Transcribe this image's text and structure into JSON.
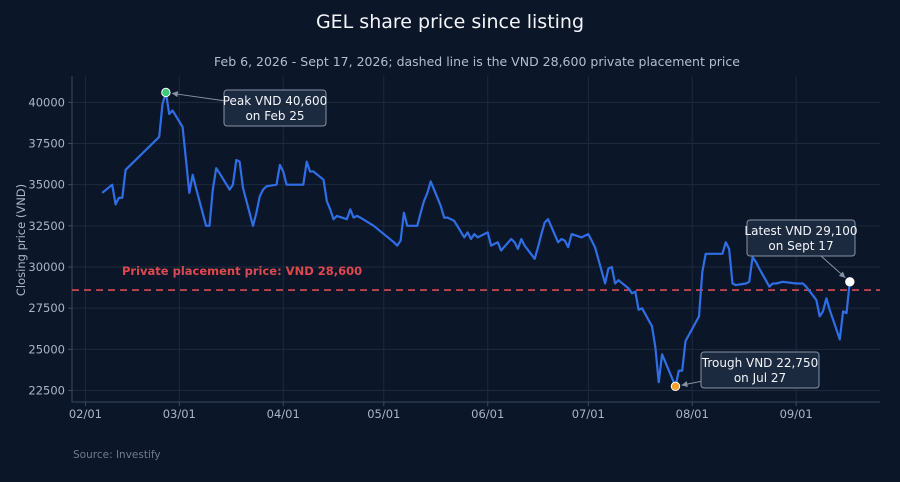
{
  "chart_data": {
    "type": "line",
    "title": "GEL share price since listing",
    "subtitle": "Feb 6, 2026 - Sept 17, 2026; dashed line is the VND 28,600 private placement price",
    "ylabel": "Closing price (VND)",
    "xlabel": "",
    "source": "Source: Investify",
    "x_ticks": [
      {
        "date": "2026-02-01",
        "label": "02/01"
      },
      {
        "date": "2026-03-01",
        "label": "03/01"
      },
      {
        "date": "2026-04-01",
        "label": "04/01"
      },
      {
        "date": "2026-05-01",
        "label": "05/01"
      },
      {
        "date": "2026-06-01",
        "label": "06/01"
      },
      {
        "date": "2026-07-01",
        "label": "07/01"
      },
      {
        "date": "2026-08-01",
        "label": "08/01"
      },
      {
        "date": "2026-09-01",
        "label": "09/01"
      }
    ],
    "y_ticks": [
      22500,
      25000,
      27500,
      30000,
      32500,
      35000,
      37500,
      40000
    ],
    "y_tick_labels": [
      "22500",
      "25000",
      "27500",
      "30000",
      "32500",
      "35000",
      "37500",
      "40000"
    ],
    "xlim": [
      "2026-01-28",
      "2026-09-26"
    ],
    "ylim": [
      21800,
      41600
    ],
    "grid": true,
    "reference_line": {
      "value": 28600,
      "label": "Private placement price: VND 28,600",
      "color": "#e0484f"
    },
    "series": [
      {
        "color": "#2f6ee6",
        "points": [
          [
            "2026-02-06",
            34500
          ],
          [
            "2026-02-09",
            35000
          ],
          [
            "2026-02-10",
            33800
          ],
          [
            "2026-02-11",
            34200
          ],
          [
            "2026-02-12",
            34200
          ],
          [
            "2026-02-13",
            35900
          ],
          [
            "2026-02-23",
            37900
          ],
          [
            "2026-02-24",
            39900
          ],
          [
            "2026-02-25",
            40600
          ],
          [
            "2026-02-26",
            39300
          ],
          [
            "2026-02-27",
            39500
          ],
          [
            "2026-03-02",
            38500
          ],
          [
            "2026-03-03",
            36500
          ],
          [
            "2026-03-04",
            34500
          ],
          [
            "2026-03-05",
            35600
          ],
          [
            "2026-03-06",
            34800
          ],
          [
            "2026-03-09",
            32500
          ],
          [
            "2026-03-10",
            32500
          ],
          [
            "2026-03-11",
            34700
          ],
          [
            "2026-03-12",
            36000
          ],
          [
            "2026-03-13",
            35700
          ],
          [
            "2026-03-16",
            34700
          ],
          [
            "2026-03-17",
            35000
          ],
          [
            "2026-03-18",
            36500
          ],
          [
            "2026-03-19",
            36400
          ],
          [
            "2026-03-20",
            34800
          ],
          [
            "2026-03-23",
            32500
          ],
          [
            "2026-03-24",
            33300
          ],
          [
            "2026-03-25",
            34300
          ],
          [
            "2026-03-26",
            34700
          ],
          [
            "2026-03-27",
            34900
          ],
          [
            "2026-03-30",
            35000
          ],
          [
            "2026-03-31",
            36200
          ],
          [
            "2026-04-01",
            35800
          ],
          [
            "2026-04-02",
            35000
          ],
          [
            "2026-04-03",
            35000
          ],
          [
            "2026-04-06",
            35000
          ],
          [
            "2026-04-07",
            35000
          ],
          [
            "2026-04-08",
            36400
          ],
          [
            "2026-04-09",
            35800
          ],
          [
            "2026-04-10",
            35800
          ],
          [
            "2026-04-13",
            35300
          ],
          [
            "2026-04-14",
            34000
          ],
          [
            "2026-04-15",
            33500
          ],
          [
            "2026-04-16",
            32900
          ],
          [
            "2026-04-17",
            33100
          ],
          [
            "2026-04-20",
            32900
          ],
          [
            "2026-04-21",
            33500
          ],
          [
            "2026-04-22",
            33000
          ],
          [
            "2026-04-23",
            33100
          ],
          [
            "2026-04-24",
            33000
          ],
          [
            "2026-04-28",
            32500
          ],
          [
            "2026-05-04",
            31500
          ],
          [
            "2026-05-05",
            31300
          ],
          [
            "2026-05-06",
            31600
          ],
          [
            "2026-05-07",
            33300
          ],
          [
            "2026-05-08",
            32500
          ],
          [
            "2026-05-11",
            32500
          ],
          [
            "2026-05-12",
            33300
          ],
          [
            "2026-05-13",
            34000
          ],
          [
            "2026-05-14",
            34500
          ],
          [
            "2026-05-15",
            35200
          ],
          [
            "2026-05-18",
            33700
          ],
          [
            "2026-05-19",
            33000
          ],
          [
            "2026-05-20",
            33000
          ],
          [
            "2026-05-21",
            32900
          ],
          [
            "2026-05-22",
            32800
          ],
          [
            "2026-05-25",
            31800
          ],
          [
            "2026-05-26",
            32100
          ],
          [
            "2026-05-27",
            31700
          ],
          [
            "2026-05-28",
            32000
          ],
          [
            "2026-05-29",
            31800
          ],
          [
            "2026-06-01",
            32100
          ],
          [
            "2026-06-02",
            31300
          ],
          [
            "2026-06-03",
            31400
          ],
          [
            "2026-06-04",
            31500
          ],
          [
            "2026-06-05",
            31000
          ],
          [
            "2026-06-08",
            31700
          ],
          [
            "2026-06-09",
            31500
          ],
          [
            "2026-06-10",
            31100
          ],
          [
            "2026-06-11",
            31700
          ],
          [
            "2026-06-12",
            31300
          ],
          [
            "2026-06-15",
            30500
          ],
          [
            "2026-06-16",
            31200
          ],
          [
            "2026-06-17",
            32000
          ],
          [
            "2026-06-18",
            32700
          ],
          [
            "2026-06-19",
            32900
          ],
          [
            "2026-06-22",
            31500
          ],
          [
            "2026-06-23",
            31700
          ],
          [
            "2026-06-24",
            31600
          ],
          [
            "2026-06-25",
            31200
          ],
          [
            "2026-06-26",
            32000
          ],
          [
            "2026-06-29",
            31800
          ],
          [
            "2026-06-30",
            31900
          ],
          [
            "2026-07-01",
            32000
          ],
          [
            "2026-07-02",
            31600
          ],
          [
            "2026-07-03",
            31200
          ],
          [
            "2026-07-06",
            29000
          ],
          [
            "2026-07-07",
            29900
          ],
          [
            "2026-07-08",
            30000
          ],
          [
            "2026-07-09",
            29000
          ],
          [
            "2026-07-10",
            29200
          ],
          [
            "2026-07-13",
            28700
          ],
          [
            "2026-07-14",
            28400
          ],
          [
            "2026-07-15",
            28500
          ],
          [
            "2026-07-16",
            27400
          ],
          [
            "2026-07-17",
            27500
          ],
          [
            "2026-07-20",
            26400
          ],
          [
            "2026-07-21",
            25100
          ],
          [
            "2026-07-22",
            23000
          ],
          [
            "2026-07-23",
            24700
          ],
          [
            "2026-07-27",
            22750
          ],
          [
            "2026-07-28",
            23700
          ],
          [
            "2026-07-29",
            23700
          ],
          [
            "2026-07-30",
            25500
          ],
          [
            "2026-08-03",
            27000
          ],
          [
            "2026-08-04",
            29700
          ],
          [
            "2026-08-05",
            30800
          ],
          [
            "2026-08-06",
            30800
          ],
          [
            "2026-08-07",
            30800
          ],
          [
            "2026-08-10",
            30800
          ],
          [
            "2026-08-11",
            31500
          ],
          [
            "2026-08-12",
            31100
          ],
          [
            "2026-08-13",
            29000
          ],
          [
            "2026-08-14",
            28900
          ],
          [
            "2026-08-17",
            29000
          ],
          [
            "2026-08-18",
            29100
          ],
          [
            "2026-08-19",
            30600
          ],
          [
            "2026-08-20",
            30300
          ],
          [
            "2026-08-21",
            29900
          ],
          [
            "2026-08-24",
            28800
          ],
          [
            "2026-08-25",
            29000
          ],
          [
            "2026-08-26",
            29000
          ],
          [
            "2026-08-28",
            29100
          ],
          [
            "2026-09-01",
            29000
          ],
          [
            "2026-09-02",
            29000
          ],
          [
            "2026-09-03",
            29000
          ],
          [
            "2026-09-04",
            28800
          ],
          [
            "2026-09-07",
            28000
          ],
          [
            "2026-09-08",
            27000
          ],
          [
            "2026-09-09",
            27300
          ],
          [
            "2026-09-10",
            28100
          ],
          [
            "2026-09-11",
            27400
          ],
          [
            "2026-09-14",
            25600
          ],
          [
            "2026-09-15",
            27300
          ],
          [
            "2026-09-16",
            27200
          ],
          [
            "2026-09-17",
            29100
          ]
        ]
      }
    ],
    "annotations": [
      {
        "id": "peak",
        "date": "2026-02-25",
        "value": 40600,
        "lines": [
          "Peak VND 40,600",
          "on Feb 25"
        ],
        "marker_color": "#3cc97a"
      },
      {
        "id": "trough",
        "date": "2026-07-27",
        "value": 22750,
        "lines": [
          "Trough VND 22,750",
          "on Jul 27"
        ],
        "marker_color": "#f0a12b"
      },
      {
        "id": "latest",
        "date": "2026-09-17",
        "value": 29100,
        "lines": [
          "Latest VND 29,100",
          "on Sept 17"
        ],
        "marker_color": "#ffffff"
      }
    ]
  }
}
